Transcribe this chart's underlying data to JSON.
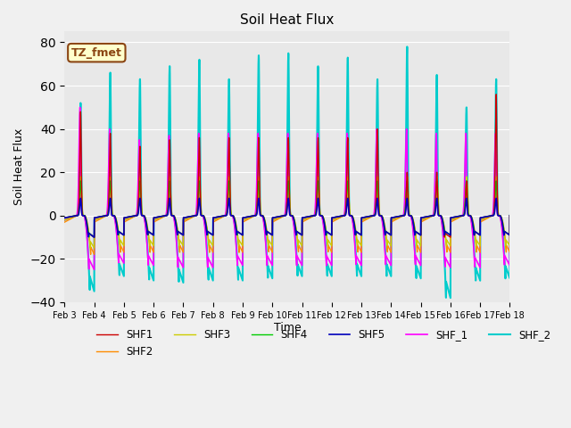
{
  "title": "Soil Heat Flux",
  "xlabel": "Time",
  "ylabel": "Soil Heat Flux",
  "ylim": [
    -40,
    85
  ],
  "xlim": [
    0,
    15
  ],
  "xtick_labels": [
    "Feb 3",
    "Feb 4",
    "Feb 5",
    "Feb 6",
    "Feb 7",
    "Feb 8",
    "Feb 9",
    "Feb 10",
    "Feb 11",
    "Feb 12",
    "Feb 13",
    "Feb 14",
    "Feb 15",
    "Feb 16",
    "Feb 17",
    "Feb 18"
  ],
  "annotation_text": "TZ_fmet",
  "annotation_box_color": "#FFFFCC",
  "annotation_border_color": "#8B4513",
  "background_color": "#E8E8E8",
  "series": {
    "SHF1": {
      "color": "#CC0000",
      "lw": 1.0
    },
    "SHF2": {
      "color": "#FF8C00",
      "lw": 1.0
    },
    "SHF3": {
      "color": "#CCCC00",
      "lw": 1.0
    },
    "SHF4": {
      "color": "#00CC00",
      "lw": 1.0
    },
    "SHF5": {
      "color": "#0000BB",
      "lw": 1.2
    },
    "SHF_1": {
      "color": "#FF00FF",
      "lw": 1.2
    },
    "SHF_2": {
      "color": "#00CCCC",
      "lw": 1.5
    }
  },
  "grid_color": "#FFFFFF",
  "yticks": [
    -40,
    -20,
    0,
    20,
    40,
    60,
    80
  ]
}
